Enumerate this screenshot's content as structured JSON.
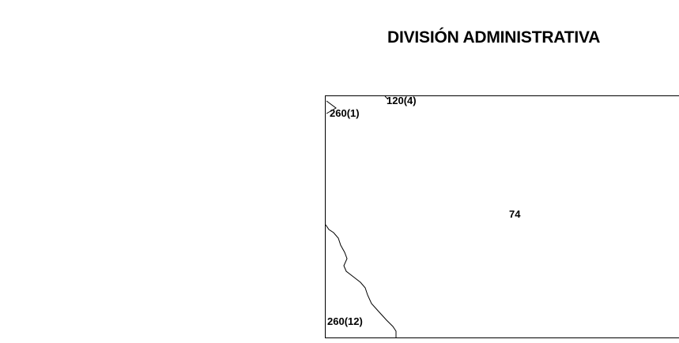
{
  "title": "DIVISIÓN ADMINISTRATIVA",
  "map": {
    "region_labels": {
      "top_left": "260(1)",
      "top": "120(4)",
      "center": "74",
      "bottom_left": "260(12)"
    },
    "colors": {
      "frame": "#000000",
      "boundary": "#000000",
      "background": "#ffffff"
    }
  }
}
